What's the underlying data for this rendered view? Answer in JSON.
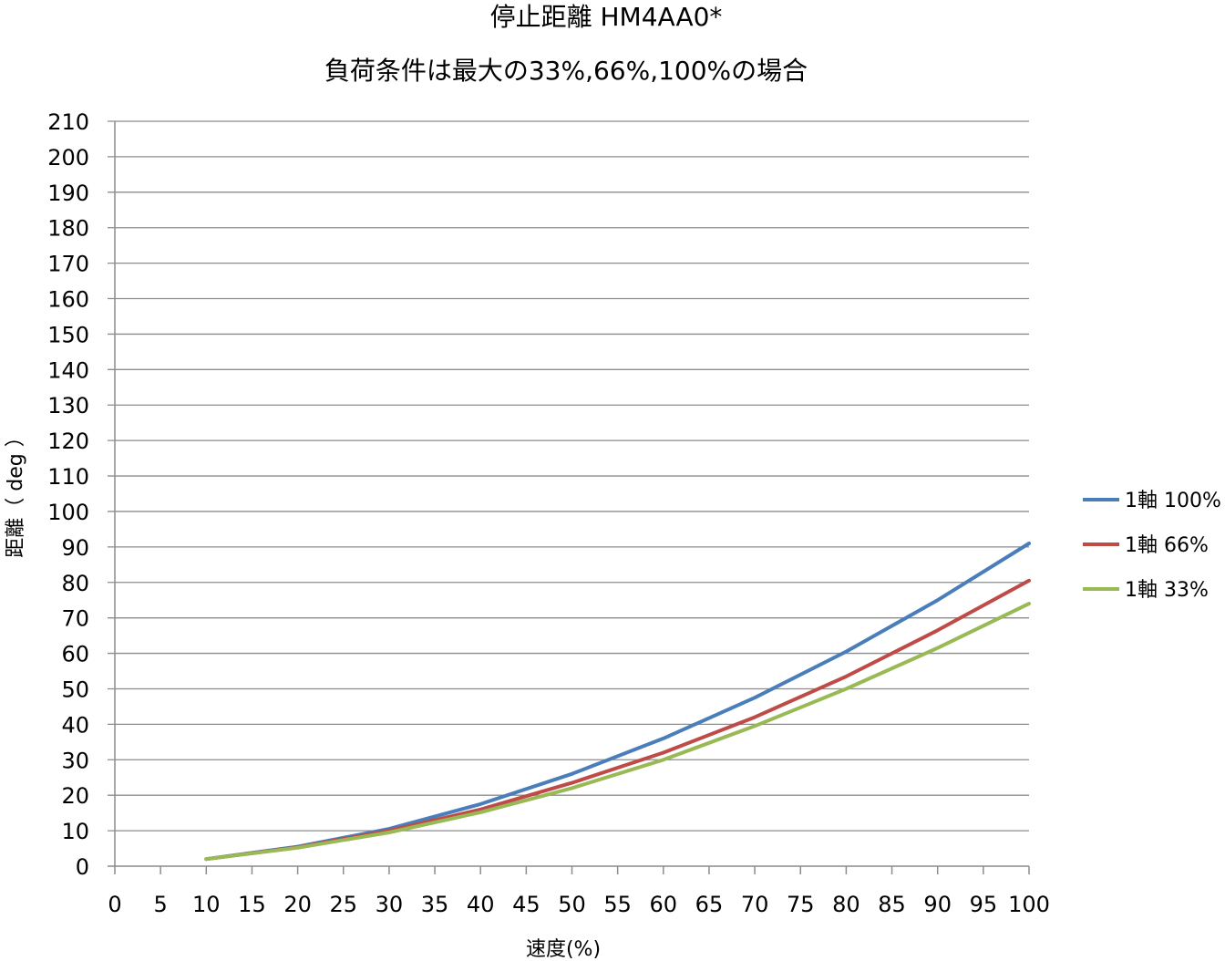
{
  "chart_data": {
    "type": "line",
    "title": "停止距離 HM4AA0*",
    "subtitle": "負荷条件は最大の33%,66%,100%の場合",
    "xlabel": "速度(%)",
    "ylabel": "距離（ deg ）",
    "xlim": [
      0,
      100
    ],
    "ylim": [
      0,
      210
    ],
    "x_ticks": [
      "0",
      "5",
      "10",
      "15",
      "20",
      "25",
      "30",
      "35",
      "40",
      "45",
      "50",
      "55",
      "60",
      "65",
      "70",
      "75",
      "80",
      "85",
      "90",
      "95",
      "100"
    ],
    "y_ticks": [
      "0",
      "10",
      "20",
      "30",
      "40",
      "50",
      "60",
      "70",
      "80",
      "90",
      "100",
      "110",
      "120",
      "130",
      "140",
      "150",
      "160",
      "170",
      "180",
      "190",
      "200",
      "210"
    ],
    "grid": "horizontal",
    "legend_position": "right",
    "x": [
      10,
      20,
      30,
      40,
      50,
      60,
      70,
      80,
      90,
      100
    ],
    "series": [
      {
        "name": "1軸 100%",
        "color": "#4a7ebb",
        "values": [
          2,
          5.5,
          10.5,
          17.5,
          26,
          36,
          47.5,
          60.5,
          75,
          91
        ]
      },
      {
        "name": "1軸 66%",
        "color": "#be4b48",
        "values": [
          2,
          5.3,
          10,
          16,
          23.5,
          32,
          42,
          53.5,
          66.5,
          80.5
        ]
      },
      {
        "name": "1軸 33%",
        "color": "#98b954",
        "values": [
          2,
          5.2,
          9.5,
          15.2,
          22,
          30,
          39.5,
          50,
          61.5,
          74
        ]
      }
    ]
  }
}
